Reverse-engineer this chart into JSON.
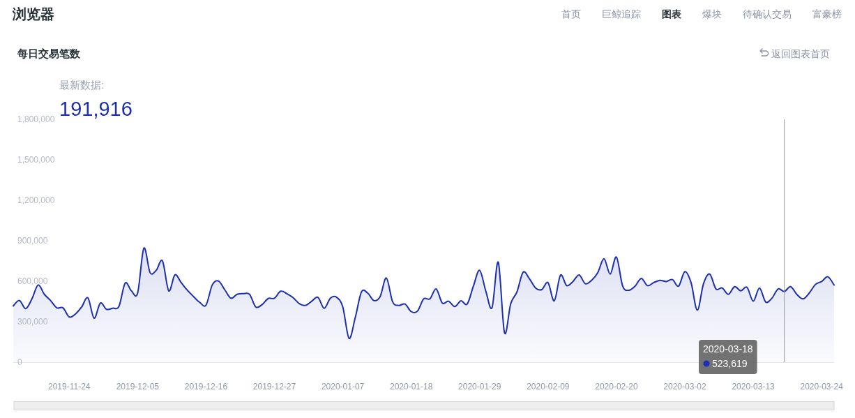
{
  "chart_data": {
    "type": "area",
    "title": "每日交易笔数",
    "x": [
      "2019-11-15",
      "2019-11-16",
      "2019-11-17",
      "2019-11-18",
      "2019-11-19",
      "2019-11-20",
      "2019-11-21",
      "2019-11-22",
      "2019-11-23",
      "2019-11-24",
      "2019-11-25",
      "2019-11-26",
      "2019-11-27",
      "2019-11-28",
      "2019-11-29",
      "2019-11-30",
      "2019-12-01",
      "2019-12-02",
      "2019-12-03",
      "2019-12-04",
      "2019-12-05",
      "2019-12-06",
      "2019-12-07",
      "2019-12-08",
      "2019-12-09",
      "2019-12-10",
      "2019-12-11",
      "2019-12-12",
      "2019-12-13",
      "2019-12-14",
      "2019-12-15",
      "2019-12-16",
      "2019-12-17",
      "2019-12-18",
      "2019-12-19",
      "2019-12-20",
      "2019-12-21",
      "2019-12-22",
      "2019-12-23",
      "2019-12-24",
      "2019-12-25",
      "2019-12-26",
      "2019-12-27",
      "2019-12-28",
      "2019-12-29",
      "2019-12-30",
      "2019-12-31",
      "2020-01-01",
      "2020-01-02",
      "2020-01-03",
      "2020-01-04",
      "2020-01-05",
      "2020-01-06",
      "2020-01-07",
      "2020-01-08",
      "2020-01-09",
      "2020-01-10",
      "2020-01-11",
      "2020-01-12",
      "2020-01-13",
      "2020-01-14",
      "2020-01-15",
      "2020-01-16",
      "2020-01-17",
      "2020-01-18",
      "2020-01-19",
      "2020-01-20",
      "2020-01-21",
      "2020-01-22",
      "2020-01-23",
      "2020-01-24",
      "2020-01-25",
      "2020-01-26",
      "2020-01-27",
      "2020-01-28",
      "2020-01-29",
      "2020-01-30",
      "2020-01-31",
      "2020-02-01",
      "2020-02-02",
      "2020-02-03",
      "2020-02-04",
      "2020-02-05",
      "2020-02-06",
      "2020-02-07",
      "2020-02-08",
      "2020-02-09",
      "2020-02-10",
      "2020-02-11",
      "2020-02-12",
      "2020-02-13",
      "2020-02-14",
      "2020-02-15",
      "2020-02-16",
      "2020-02-17",
      "2020-02-18",
      "2020-02-19",
      "2020-02-20",
      "2020-02-21",
      "2020-02-22",
      "2020-02-23",
      "2020-02-24",
      "2020-02-25",
      "2020-02-26",
      "2020-02-27",
      "2020-02-28",
      "2020-02-29",
      "2020-03-01",
      "2020-03-02",
      "2020-03-03",
      "2020-03-04",
      "2020-03-05",
      "2020-03-06",
      "2020-03-07",
      "2020-03-08",
      "2020-03-09",
      "2020-03-10",
      "2020-03-11",
      "2020-03-12",
      "2020-03-13",
      "2020-03-14",
      "2020-03-15",
      "2020-03-16",
      "2020-03-17",
      "2020-03-18",
      "2020-03-19",
      "2020-03-20",
      "2020-03-21",
      "2020-03-22",
      "2020-03-23",
      "2020-03-24",
      "2020-03-25",
      "2020-03-26"
    ],
    "series": [
      {
        "color": "#1c2fae",
        "values": [
          417000,
          457000,
          397000,
          469000,
          572000,
          503000,
          457000,
          403000,
          403000,
          335000,
          357000,
          409000,
          477000,
          326000,
          438000,
          392000,
          400000,
          414000,
          586000,
          529000,
          512000,
          845000,
          664000,
          682000,
          750000,
          529000,
          647000,
          590000,
          533000,
          486000,
          443000,
          423000,
          572000,
          602000,
          538000,
          474000,
          503000,
          508000,
          503000,
          409000,
          426000,
          472000,
          474000,
          526000,
          508000,
          478000,
          434000,
          421000,
          452000,
          481000,
          400000,
          474000,
          481000,
          409000,
          176000,
          331000,
          521000,
          512000,
          457000,
          486000,
          624000,
          448000,
          421000,
          431000,
          375000,
          378000,
          469000,
          469000,
          543000,
          438000,
          452000,
          412000,
          455000,
          431000,
          564000,
          681000,
          526000,
          405000,
          741000,
          219000,
          434000,
          521000,
          667000,
          619000,
          550000,
          538000,
          590000,
          455000,
          645000,
          567000,
          598000,
          647000,
          581000,
          607000,
          664000,
          767000,
          653000,
          779000,
          564000,
          533000,
          564000,
          621000,
          567000,
          590000,
          607000,
          598000,
          612000,
          564000,
          671000,
          590000,
          386000,
          581000,
          653000,
          543000,
          550000,
          503000,
          560000,
          529000,
          555000,
          452000,
          550000,
          446000,
          474000,
          543000,
          523619,
          560000,
          503000,
          469000,
          512000,
          576000,
          598000,
          633000,
          572000
        ]
      }
    ],
    "xlim": [
      "2019-11-15",
      "2020-03-26"
    ],
    "xticks": [
      "2019-11-24",
      "2019-12-05",
      "2019-12-16",
      "2019-12-27",
      "2020-01-07",
      "2020-01-18",
      "2020-01-29",
      "2020-02-09",
      "2020-02-20",
      "2020-03-02",
      "2020-03-13",
      "2020-03-24"
    ],
    "ylim": [
      0,
      1800000
    ],
    "yticks": [
      0,
      {
        "value": 300000,
        "label": "300,000"
      },
      {
        "value": 600000,
        "label": "600,000"
      },
      {
        "value": 900000,
        "label": "900,000"
      },
      {
        "value": 1200000,
        "label": "1,200,000"
      },
      {
        "value": 1500000,
        "label": "1,500,000"
      },
      {
        "value": 1800000,
        "label": "1,800,000"
      }
    ],
    "marker": "none",
    "ref_lines": [
      {
        "axis": "x",
        "value": "2020-03-18",
        "color": "#999999"
      }
    ],
    "annotations": [
      "浏览器",
      "首页",
      "巨鲸追踪",
      "图表",
      "爆块",
      "待确认交易",
      "富豪榜",
      "返回图表首页",
      "最新数据:",
      "191,916",
      "2020-03-18\n523,619"
    ]
  }
}
